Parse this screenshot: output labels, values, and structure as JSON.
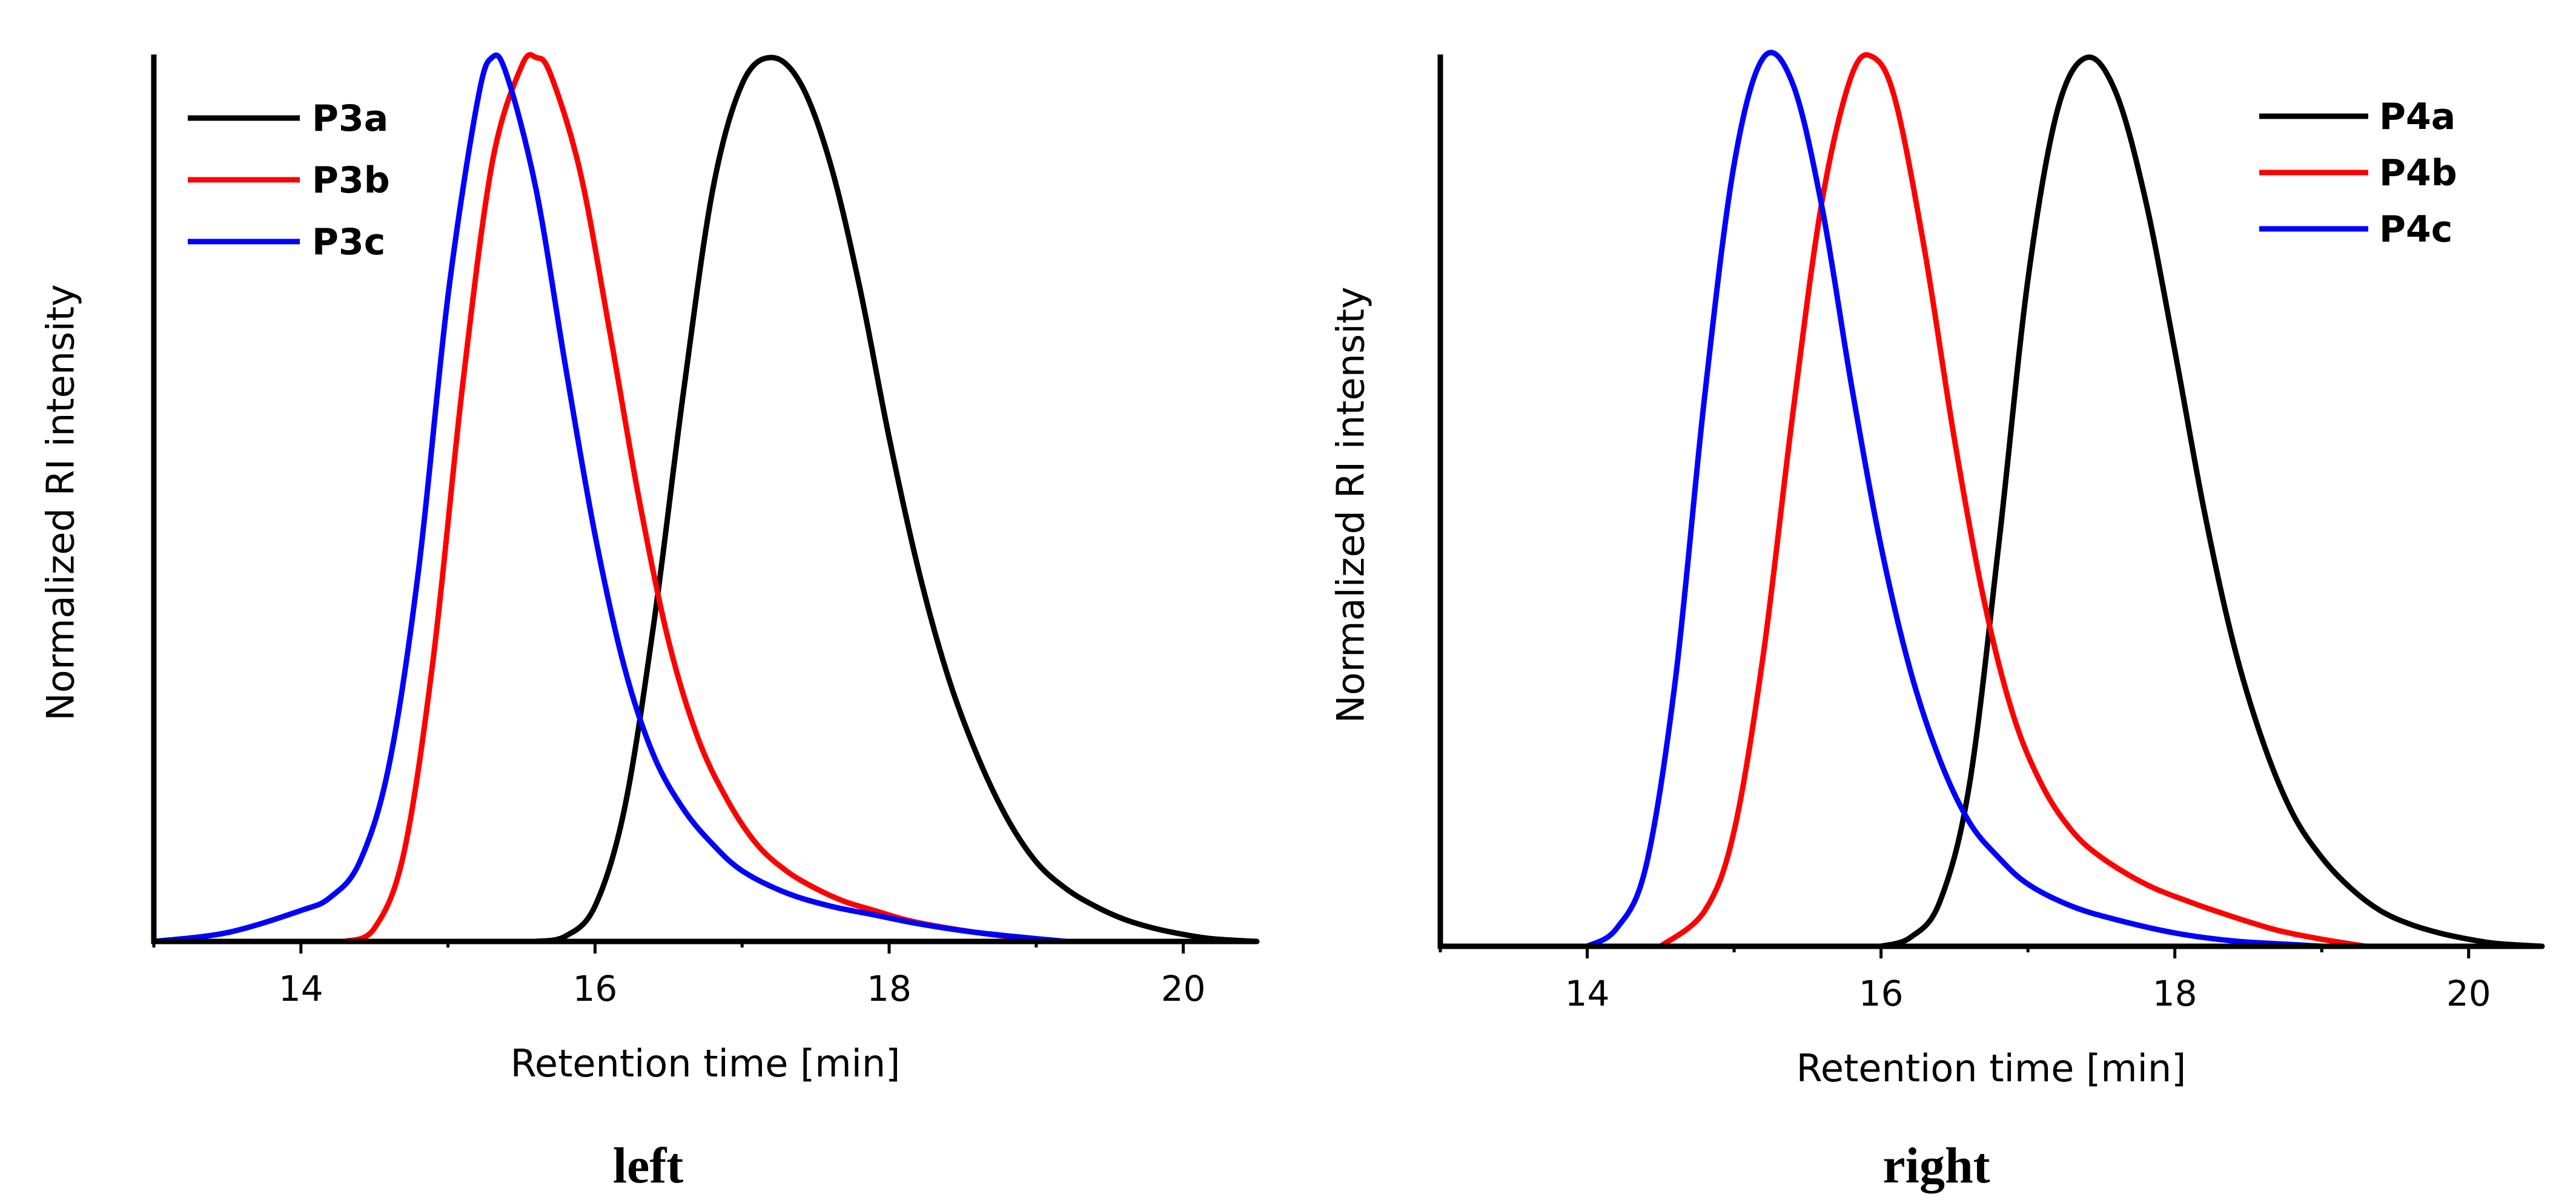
{
  "chart_data": [
    {
      "type": "line",
      "caption": "left",
      "xlabel": "Retention time [min]",
      "ylabel": "Normalized RI intensity",
      "xlim": [
        13,
        20.5
      ],
      "ylim": [
        0,
        1.0
      ],
      "xticks": [
        14,
        16,
        18,
        20
      ],
      "xtick_labels": [
        "14",
        "16",
        "18",
        "20"
      ],
      "legend_position": "top-left",
      "series": [
        {
          "name": "P3a",
          "color": "#000000",
          "x": [
            15.6,
            15.8,
            16.0,
            16.2,
            16.4,
            16.6,
            16.8,
            17.0,
            17.2,
            17.4,
            17.6,
            17.8,
            18.0,
            18.2,
            18.4,
            18.6,
            18.8,
            19.0,
            19.2,
            19.4,
            19.6,
            19.8,
            20.0,
            20.2,
            20.5
          ],
          "y": [
            0.0,
            0.006,
            0.04,
            0.15,
            0.36,
            0.62,
            0.85,
            0.97,
            1.0,
            0.97,
            0.88,
            0.74,
            0.57,
            0.42,
            0.3,
            0.21,
            0.14,
            0.09,
            0.06,
            0.04,
            0.025,
            0.015,
            0.008,
            0.003,
            0.0
          ]
        },
        {
          "name": "P3b",
          "color": "#ff0000",
          "x": [
            14.3,
            14.5,
            14.7,
            14.9,
            15.1,
            15.3,
            15.5,
            15.6,
            15.7,
            15.9,
            16.1,
            16.3,
            16.5,
            16.7,
            16.9,
            17.1,
            17.3,
            17.5,
            17.7,
            17.9,
            18.1,
            18.3,
            18.6,
            18.9,
            19.2
          ],
          "y": [
            0.0,
            0.015,
            0.1,
            0.32,
            0.63,
            0.88,
            0.99,
            1.0,
            0.98,
            0.87,
            0.69,
            0.5,
            0.34,
            0.23,
            0.16,
            0.11,
            0.08,
            0.06,
            0.045,
            0.035,
            0.025,
            0.018,
            0.01,
            0.004,
            0.0
          ]
        },
        {
          "name": "P3c",
          "color": "#0000ff",
          "x": [
            13.0,
            13.5,
            14.0,
            14.2,
            14.4,
            14.6,
            14.8,
            15.0,
            15.2,
            15.3,
            15.4,
            15.6,
            15.8,
            16.0,
            16.2,
            16.4,
            16.6,
            16.8,
            17.0,
            17.3,
            17.6,
            17.9,
            18.2,
            18.6,
            19.2
          ],
          "y": [
            0.0,
            0.01,
            0.035,
            0.05,
            0.09,
            0.2,
            0.42,
            0.73,
            0.95,
            1.0,
            0.98,
            0.85,
            0.65,
            0.46,
            0.31,
            0.21,
            0.15,
            0.11,
            0.08,
            0.055,
            0.04,
            0.03,
            0.02,
            0.01,
            0.0
          ]
        }
      ]
    },
    {
      "type": "line",
      "caption": "right",
      "xlabel": "Retention time [min]",
      "ylabel": "Normalized RI intensity",
      "xlim": [
        13,
        20.5
      ],
      "ylim": [
        0,
        1.0
      ],
      "xticks": [
        14,
        16,
        18,
        20
      ],
      "xtick_labels": [
        "14",
        "16",
        "18",
        "20"
      ],
      "legend_position": "top-right",
      "series": [
        {
          "name": "P4a",
          "color": "#000000",
          "x": [
            16.0,
            16.2,
            16.4,
            16.6,
            16.8,
            17.0,
            17.2,
            17.4,
            17.6,
            17.8,
            18.0,
            18.2,
            18.4,
            18.6,
            18.8,
            19.0,
            19.2,
            19.4,
            19.6,
            19.8,
            20.0,
            20.2,
            20.5
          ],
          "y": [
            0.0,
            0.01,
            0.05,
            0.18,
            0.45,
            0.75,
            0.94,
            1.0,
            0.96,
            0.84,
            0.67,
            0.49,
            0.34,
            0.23,
            0.15,
            0.1,
            0.065,
            0.04,
            0.025,
            0.015,
            0.008,
            0.003,
            0.0
          ]
        },
        {
          "name": "P4b",
          "color": "#ff0000",
          "x": [
            14.5,
            14.8,
            15.0,
            15.2,
            15.4,
            15.6,
            15.8,
            15.95,
            16.1,
            16.3,
            16.5,
            16.7,
            16.9,
            17.1,
            17.3,
            17.5,
            17.8,
            18.1,
            18.4,
            18.7,
            19.0,
            19.3
          ],
          "y": [
            0.0,
            0.04,
            0.13,
            0.33,
            0.6,
            0.84,
            0.98,
            1.0,
            0.95,
            0.78,
            0.57,
            0.39,
            0.26,
            0.18,
            0.13,
            0.1,
            0.07,
            0.05,
            0.033,
            0.018,
            0.008,
            0.0
          ]
        },
        {
          "name": "P4c",
          "color": "#0000ff",
          "x": [
            14.0,
            14.2,
            14.4,
            14.6,
            14.8,
            15.0,
            15.2,
            15.4,
            15.6,
            15.8,
            16.0,
            16.2,
            16.4,
            16.6,
            16.8,
            17.0,
            17.3,
            17.6,
            18.0,
            18.4,
            18.8,
            19.0
          ],
          "y": [
            0.0,
            0.02,
            0.09,
            0.3,
            0.62,
            0.88,
            1.0,
            0.97,
            0.83,
            0.63,
            0.45,
            0.31,
            0.21,
            0.14,
            0.1,
            0.07,
            0.045,
            0.03,
            0.015,
            0.006,
            0.002,
            0.0
          ]
        }
      ]
    }
  ]
}
